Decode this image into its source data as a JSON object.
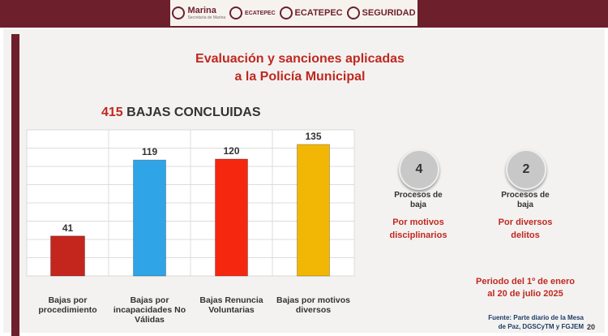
{
  "header": {
    "logos": [
      {
        "name": "Marina",
        "sub": "Secretaría de Marina"
      },
      {
        "name": "ECATEPEC",
        "sub": ""
      },
      {
        "name": "ECATEPEC",
        "sub": ""
      },
      {
        "name": "SEGURIDAD",
        "sub": ""
      }
    ]
  },
  "title_line1": "Evaluación y sanciones aplicadas",
  "title_line2": "a la Policía Municipal",
  "headline_number": "415",
  "headline_text": "BAJAS CONCLUIDAS",
  "chart_data": {
    "type": "bar",
    "categories": [
      [
        "Bajas por",
        "procedimiento"
      ],
      [
        "Bajas por",
        "incapacidades No",
        "Válidas"
      ],
      [
        "Bajas Renuncia",
        "Voluntarias"
      ],
      [
        "Bajas por motivos",
        "diversos"
      ]
    ],
    "values": [
      41,
      119,
      120,
      135
    ],
    "colors": [
      "#c4261d",
      "#2fa4e7",
      "#f5280f",
      "#f2b705"
    ],
    "ylim": [
      0,
      150
    ],
    "grid": true
  },
  "stats": [
    {
      "number": "4",
      "label": [
        "Procesos de",
        "baja"
      ],
      "cause": [
        "Por motivos",
        "disciplinarios"
      ]
    },
    {
      "number": "2",
      "label": [
        "Procesos de",
        "baja"
      ],
      "cause": [
        "Por diversos",
        "delitos"
      ]
    }
  ],
  "period": [
    "Periodo del 1º de enero",
    "al 20 de julio 2025"
  ],
  "source": [
    "Fuente: Parte diario de la Mesa",
    "de Paz, DGSCyTM y FGJEM"
  ],
  "page_number": "20",
  "colors": {
    "accent": "#c0281f",
    "brand": "#6e1f2c"
  }
}
